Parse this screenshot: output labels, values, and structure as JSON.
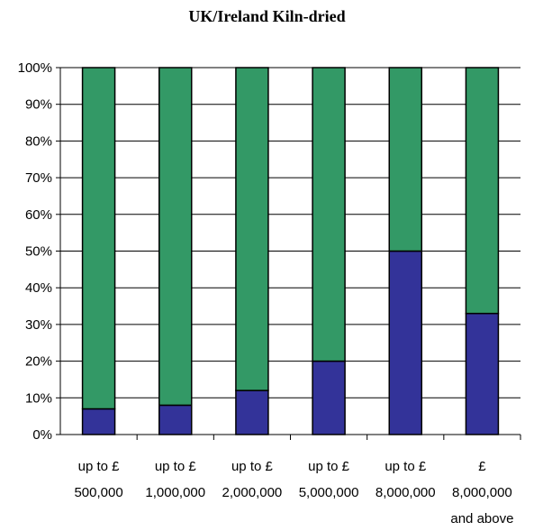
{
  "chart_data": {
    "type": "bar",
    "stacked": true,
    "percent": true,
    "title": "UK/Ireland Kiln-dried",
    "xlabel": "",
    "ylabel": "",
    "ylim": [
      0,
      100
    ],
    "y_ticks": [
      "0%",
      "10%",
      "20%",
      "30%",
      "40%",
      "50%",
      "60%",
      "70%",
      "80%",
      "90%",
      "100%"
    ],
    "grid": true,
    "categories": [
      [
        "up to £",
        "500,000"
      ],
      [
        "up to £",
        "1,000,000"
      ],
      [
        "up to £",
        "2,000,000"
      ],
      [
        "up to £",
        "5,000,000"
      ],
      [
        "up to £",
        "8,000,000"
      ],
      [
        "£",
        "8,000,000",
        "and above"
      ]
    ],
    "series": [
      {
        "values": [
          7,
          8,
          12,
          20,
          50,
          33
        ],
        "color": "#333399"
      },
      {
        "values": [
          93,
          92,
          88,
          80,
          50,
          67
        ],
        "color": "#339966"
      }
    ]
  }
}
